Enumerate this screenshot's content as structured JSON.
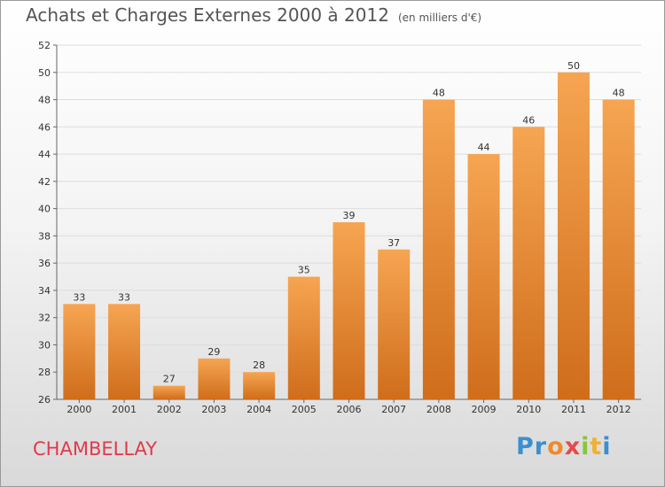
{
  "header": {
    "title": "Achats et Charges Externes 2000 à 2012",
    "unit": "(en milliers d'€)"
  },
  "footer": {
    "commune": "CHAMBELLAY",
    "logo_letters": [
      "P",
      "r",
      "o",
      "x",
      "i",
      "t",
      "i"
    ],
    "logo_colors": [
      "#3a8fd0",
      "#3a8fd0",
      "#f08a2a",
      "#e84a4a",
      "#8ac43a",
      "#f0b030",
      "#3a8fd0"
    ]
  },
  "chart_data": {
    "type": "bar",
    "categories": [
      "2000",
      "2001",
      "2002",
      "2003",
      "2004",
      "2005",
      "2006",
      "2007",
      "2008",
      "2009",
      "2010",
      "2011",
      "2012"
    ],
    "values": [
      33,
      33,
      27,
      29,
      28,
      35,
      39,
      37,
      48,
      44,
      46,
      50,
      48
    ],
    "ylim": [
      26,
      52
    ],
    "yticks": [
      26,
      28,
      30,
      32,
      34,
      36,
      38,
      40,
      42,
      44,
      46,
      48,
      50,
      52
    ],
    "grid": true,
    "bar_color_top": "#f6a552",
    "bar_color_bottom": "#cf6d1b"
  }
}
